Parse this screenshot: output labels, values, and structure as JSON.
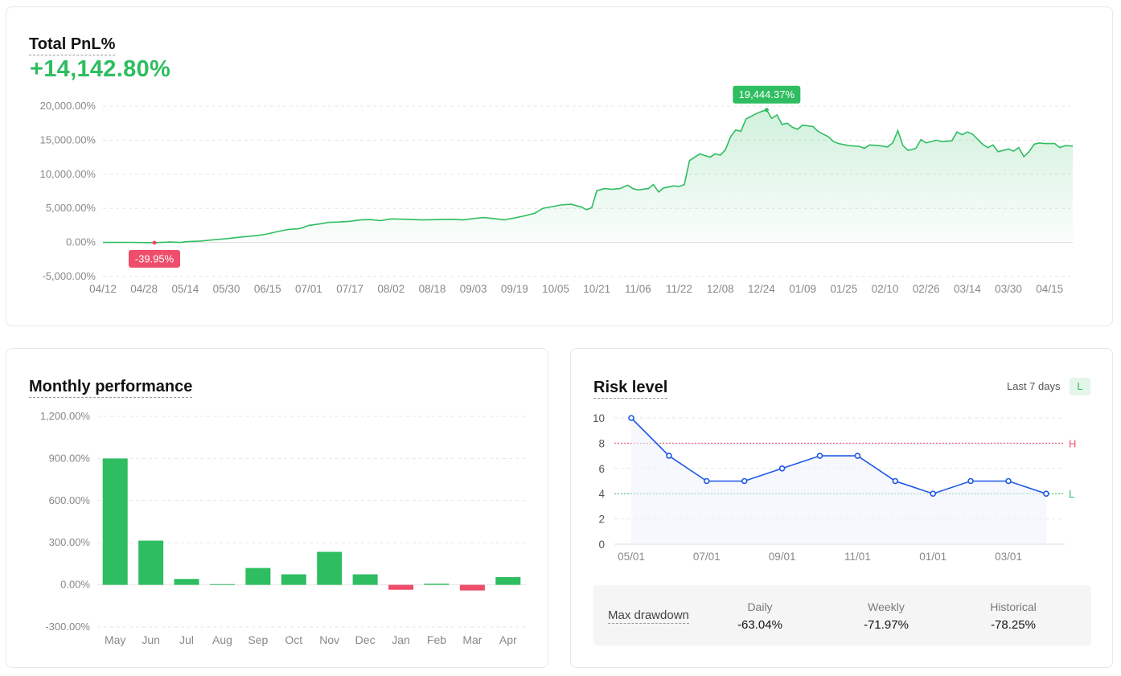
{
  "colors": {
    "green": "#2ebd61",
    "red": "#ee4d6b",
    "blue": "#1f57e6",
    "grid": "#e6e6e6",
    "axis_text": "#888888"
  },
  "pnl": {
    "title": "Total PnL%",
    "value": "+14,142.80%",
    "chart_data": {
      "type": "area",
      "title": "Total PnL%",
      "y_ticks": [
        20000,
        15000,
        10000,
        5000,
        0,
        -5000
      ],
      "y_tick_labels": [
        "20,000.00%",
        "15,000.00%",
        "10,000.00%",
        "5,000.00%",
        "0.00%",
        "-5,000.00%"
      ],
      "ylim": [
        -5000,
        20000
      ],
      "x_tick_labels": [
        "04/12",
        "04/28",
        "05/14",
        "05/30",
        "06/15",
        "07/01",
        "07/17",
        "08/02",
        "08/18",
        "09/03",
        "09/19",
        "10/05",
        "10/21",
        "11/06",
        "11/22",
        "12/08",
        "12/24",
        "01/09",
        "01/25",
        "02/10",
        "02/26",
        "03/14",
        "03/30",
        "04/15"
      ],
      "x_tick_days": [
        0,
        16,
        32,
        48,
        64,
        80,
        96,
        112,
        128,
        144,
        160,
        176,
        192,
        208,
        224,
        240,
        256,
        272,
        288,
        304,
        320,
        336,
        352,
        368
      ],
      "x_range_days": [
        0,
        377
      ],
      "series_points": [
        [
          0,
          0
        ],
        [
          10,
          10
        ],
        [
          20,
          -39.95
        ],
        [
          26,
          60
        ],
        [
          30,
          0
        ],
        [
          33,
          120
        ],
        [
          38,
          200
        ],
        [
          44,
          420
        ],
        [
          48,
          550
        ],
        [
          54,
          800
        ],
        [
          60,
          1000
        ],
        [
          64,
          1250
        ],
        [
          68,
          1600
        ],
        [
          72,
          1900
        ],
        [
          76,
          2000
        ],
        [
          78,
          2200
        ],
        [
          80,
          2500
        ],
        [
          84,
          2700
        ],
        [
          88,
          2950
        ],
        [
          92,
          3000
        ],
        [
          96,
          3100
        ],
        [
          100,
          3300
        ],
        [
          104,
          3350
        ],
        [
          108,
          3200
        ],
        [
          112,
          3450
        ],
        [
          118,
          3400
        ],
        [
          124,
          3300
        ],
        [
          130,
          3350
        ],
        [
          136,
          3400
        ],
        [
          140,
          3300
        ],
        [
          144,
          3500
        ],
        [
          148,
          3650
        ],
        [
          152,
          3500
        ],
        [
          156,
          3300
        ],
        [
          160,
          3600
        ],
        [
          164,
          3900
        ],
        [
          168,
          4300
        ],
        [
          171,
          5000
        ],
        [
          174,
          5200
        ],
        [
          178,
          5500
        ],
        [
          182,
          5600
        ],
        [
          186,
          5200
        ],
        [
          188,
          4800
        ],
        [
          190,
          5100
        ],
        [
          192,
          7600
        ],
        [
          195,
          7900
        ],
        [
          198,
          7800
        ],
        [
          201,
          7900
        ],
        [
          204,
          8400
        ],
        [
          206,
          7900
        ],
        [
          208,
          7700
        ],
        [
          212,
          7900
        ],
        [
          214,
          8500
        ],
        [
          216,
          7400
        ],
        [
          218,
          8000
        ],
        [
          222,
          8300
        ],
        [
          224,
          8200
        ],
        [
          226,
          8500
        ],
        [
          228,
          12000
        ],
        [
          230,
          12500
        ],
        [
          232,
          13000
        ],
        [
          236,
          12500
        ],
        [
          238,
          13000
        ],
        [
          240,
          12800
        ],
        [
          242,
          13600
        ],
        [
          244,
          15500
        ],
        [
          246,
          16500
        ],
        [
          248,
          16300
        ],
        [
          250,
          18100
        ],
        [
          252,
          18500
        ],
        [
          254,
          18900
        ],
        [
          256,
          19200
        ],
        [
          258,
          19444.37
        ],
        [
          260,
          18200
        ],
        [
          262,
          18700
        ],
        [
          264,
          17300
        ],
        [
          266,
          17500
        ],
        [
          268,
          16900
        ],
        [
          270,
          16600
        ],
        [
          272,
          17200
        ],
        [
          276,
          17000
        ],
        [
          278,
          16300
        ],
        [
          280,
          15900
        ],
        [
          282,
          15500
        ],
        [
          284,
          14800
        ],
        [
          286,
          14500
        ],
        [
          290,
          14200
        ],
        [
          294,
          14100
        ],
        [
          296,
          13800
        ],
        [
          298,
          14300
        ],
        [
          302,
          14200
        ],
        [
          305,
          14000
        ],
        [
          307,
          14600
        ],
        [
          309,
          16400
        ],
        [
          311,
          14200
        ],
        [
          313,
          13500
        ],
        [
          316,
          13800
        ],
        [
          318,
          15100
        ],
        [
          320,
          14600
        ],
        [
          324,
          15000
        ],
        [
          326,
          14800
        ],
        [
          330,
          14900
        ],
        [
          332,
          16200
        ],
        [
          334,
          15800
        ],
        [
          336,
          16200
        ],
        [
          338,
          15900
        ],
        [
          342,
          14400
        ],
        [
          344,
          13900
        ],
        [
          346,
          14300
        ],
        [
          348,
          13300
        ],
        [
          352,
          13700
        ],
        [
          354,
          13400
        ],
        [
          356,
          13900
        ],
        [
          358,
          12600
        ],
        [
          360,
          13300
        ],
        [
          362,
          14400
        ],
        [
          364,
          14600
        ],
        [
          366,
          14500
        ],
        [
          368,
          14500
        ],
        [
          370,
          14500
        ],
        [
          372,
          13900
        ],
        [
          374,
          14200
        ],
        [
          377,
          14142.8
        ]
      ],
      "max_point": {
        "x": 258,
        "y": 19444.37,
        "label": "19,444.37%"
      },
      "min_point": {
        "x": 20,
        "y": -39.95,
        "label": "-39.95%"
      }
    }
  },
  "monthly": {
    "title": "Monthly performance",
    "chart_data": {
      "type": "bar",
      "title": "Monthly performance",
      "categories": [
        "May",
        "Jun",
        "Jul",
        "Aug",
        "Sep",
        "Oct",
        "Nov",
        "Dec",
        "Jan",
        "Feb",
        "Mar",
        "Apr"
      ],
      "values": [
        900,
        315,
        42,
        5,
        120,
        75,
        235,
        75,
        -35,
        8,
        -40,
        55
      ],
      "y_ticks": [
        1200,
        900,
        600,
        300,
        0,
        -300
      ],
      "y_tick_labels": [
        "1,200.00%",
        "900.00%",
        "600.00%",
        "300.00%",
        "0.00%",
        "-300.00%"
      ],
      "ylim": [
        -300,
        1200
      ]
    }
  },
  "risk": {
    "title": "Risk level",
    "range_label": "Last 7 days",
    "current_level": "L",
    "chart_data": {
      "type": "line",
      "title": "Risk level",
      "values": [
        10,
        7,
        5,
        5,
        6,
        7,
        7,
        5,
        4,
        5,
        5,
        4
      ],
      "x_tick_labels": [
        "05/01",
        "07/01",
        "09/01",
        "11/01",
        "01/01",
        "03/01"
      ],
      "x_tick_index": [
        0,
        2,
        4,
        6,
        8,
        10
      ],
      "y_ticks": [
        10,
        8,
        6,
        4,
        2,
        0
      ],
      "ylim": [
        0,
        10
      ],
      "thresholds": [
        {
          "label": "H",
          "value": 8
        },
        {
          "label": "L",
          "value": 4
        }
      ]
    },
    "drawdown": {
      "label": "Max drawdown",
      "columns": [
        {
          "header": "Daily",
          "value": "-63.04%"
        },
        {
          "header": "Weekly",
          "value": "-71.97%"
        },
        {
          "header": "Historical",
          "value": "-78.25%"
        }
      ]
    }
  }
}
